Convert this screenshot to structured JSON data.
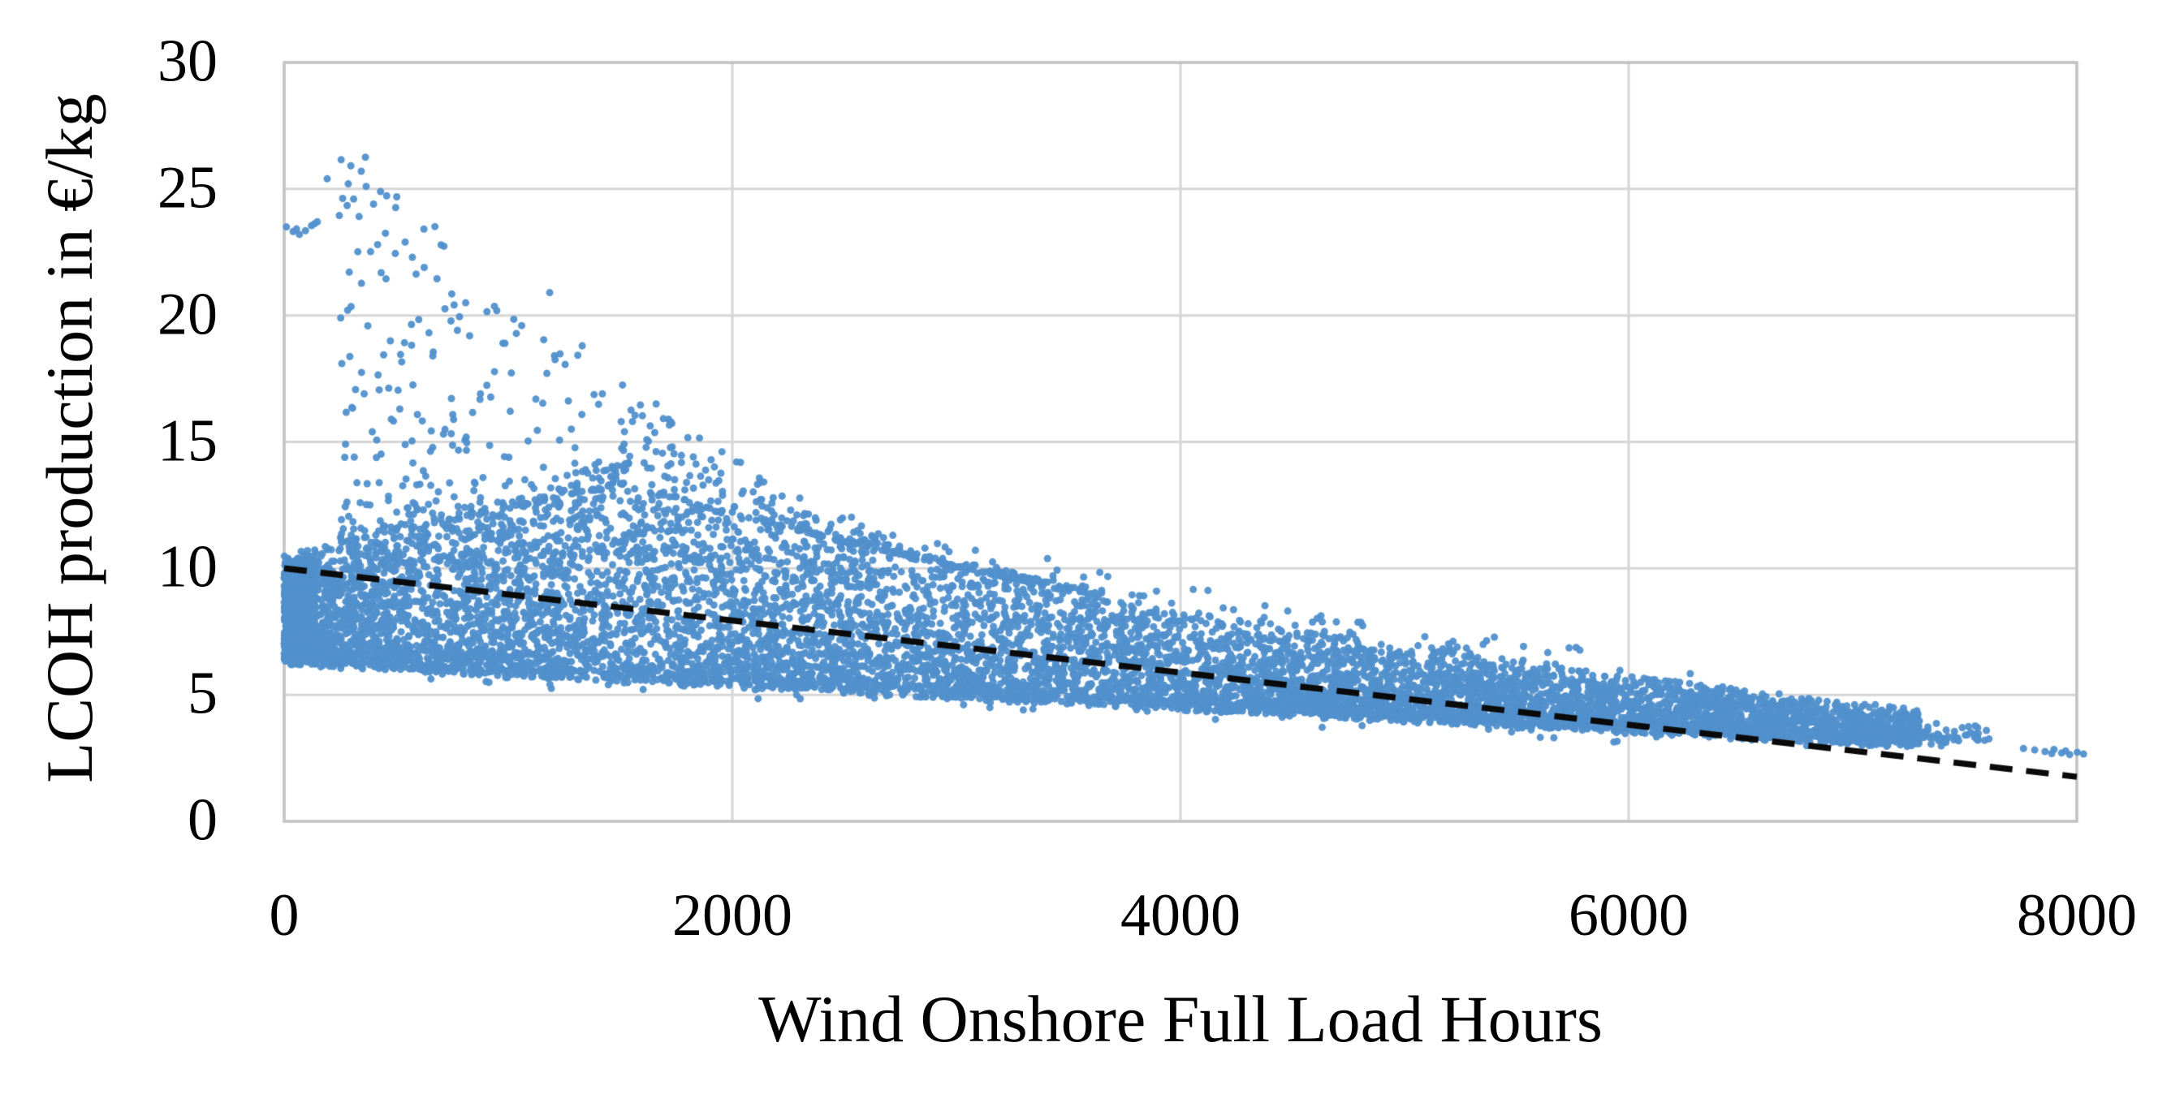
{
  "page": {
    "background": "#FFFFFF"
  },
  "chart_data": {
    "type": "scatter",
    "title": "",
    "xlabel": "Wind Onshore Full Load Hours",
    "ylabel": "LCOH production in €/kg",
    "xlim": [
      0,
      8000
    ],
    "ylim": [
      0,
      30
    ],
    "xticks": [
      0,
      2000,
      4000,
      6000,
      8000
    ],
    "yticks": [
      0,
      5,
      10,
      15,
      20,
      25,
      30
    ],
    "grid": true,
    "legend": false,
    "colors": {
      "marker": "#5190CC",
      "marker_dense": "#4C89C6",
      "grid": "#D6D6D6",
      "border": "#C4C4C4",
      "text": "#000000",
      "trend": "#0A0A0A"
    },
    "marker": {
      "radius_px": 4.5,
      "opacity": 0.95
    },
    "trendline": {
      "type": "linear-dashed",
      "x0": 0,
      "y0": 10.0,
      "x1": 8000,
      "y1": 1.76,
      "dash": [
        28,
        17
      ],
      "width": 7.5
    },
    "description": "Monte-Carlo style scatter of levelized cost of hydrogen production versus wind onshore full load hours; dense declining band from ~6-10.5 €/kg at low full load hours to ~2.7-3 €/kg near 8000 h, with a sparse fan of high-cost outliers up to ~25.7 €/kg below 3600 h and a dashed linear trendline from (0, 10) to (8000, 1.76)",
    "scatter_model": {
      "seed": 1337,
      "envelopes": {
        "lower": {
          "base": 6.35,
          "slope": 0.00045
        },
        "top": {
          "a": 17.56,
          "b": 0.0001905,
          "left_break": 1500,
          "left_base": 10.4,
          "left_slope": 0.0018667
        },
        "fan_top": {
          "a": 26.5,
          "b": 0.00037,
          "x0": 350,
          "cap": 26.5
        }
      },
      "components": {
        "core": {
          "n": 9200,
          "x_max": 7300,
          "x_pow": 1.18,
          "y_pow": 1.65,
          "edge_jitter": 0.2
        },
        "wall": {
          "n": 750,
          "x_max": 140,
          "y_min": 6.35,
          "y_max": 10.35
        },
        "fan": {
          "n": 560,
          "x_min": 250,
          "x_span": 3350,
          "x_pow": 1.35,
          "y_pow": 2.6,
          "y_lift": 0.15
        },
        "halo": {
          "n": 190,
          "x_min": 500,
          "x_span": 5800,
          "y_above": 1.15,
          "y_pow": 2.4
        },
        "tail": {
          "n": 60,
          "x_min": 7150,
          "x_span": 480,
          "x_pow": 1.2,
          "y_lift": 0.1,
          "y_span": 0.75,
          "y_pow": 1.6
        },
        "below": {
          "n": 70,
          "x_min": 600,
          "x_span": 6200,
          "y_drop": 0.08,
          "y_depth": 0.5,
          "y_pow": 2.0
        }
      },
      "outlier_points": [
        [
          10,
          23.5
        ],
        [
          40,
          23.32
        ],
        [
          68,
          23.2
        ],
        [
          95,
          23.35
        ],
        [
          122,
          23.55
        ],
        [
          148,
          23.7
        ],
        [
          55,
          23.42
        ],
        [
          135,
          23.62
        ],
        [
          192,
          25.4
        ],
        [
          286,
          25.2
        ],
        [
          344,
          25.7
        ],
        [
          366,
          25.1
        ],
        [
          399,
          24.4
        ],
        [
          246,
          23.95
        ],
        [
          430,
          24.9
        ],
        [
          310,
          24.6
        ],
        [
          417,
          22.8
        ],
        [
          452,
          23.25
        ],
        [
          496,
          22.45
        ],
        [
          540,
          22.9
        ],
        [
          572,
          22.3
        ],
        [
          625,
          21.9
        ],
        [
          682,
          21.45
        ],
        [
          748,
          20.85
        ],
        [
          810,
          20.5
        ],
        [
          905,
          20.15
        ],
        [
          985,
          18.9
        ],
        [
          1060,
          19.6
        ],
        [
          1185,
          20.9
        ],
        [
          1330,
          18.8
        ],
        [
          1420,
          16.9
        ],
        [
          1510,
          17.25
        ],
        [
          1660,
          16.5
        ],
        [
          6810,
          4.35
        ],
        [
          6890,
          4.05
        ],
        [
          6965,
          3.9
        ],
        [
          7045,
          4.2
        ],
        [
          7125,
          3.95
        ],
        [
          7330,
          3.55
        ],
        [
          7378,
          3.45
        ],
        [
          7425,
          3.35
        ],
        [
          7468,
          3.3
        ],
        [
          7512,
          3.42
        ],
        [
          7558,
          3.3
        ],
        [
          7608,
          3.26
        ],
        [
          7350,
          3.05
        ],
        [
          7395,
          2.98
        ],
        [
          7762,
          2.88
        ],
        [
          7812,
          2.82
        ],
        [
          7858,
          2.76
        ],
        [
          7898,
          2.84
        ],
        [
          7932,
          2.7
        ],
        [
          7968,
          2.64
        ],
        [
          8002,
          2.73
        ],
        [
          7888,
          2.68
        ],
        [
          7950,
          2.78
        ],
        [
          8030,
          2.66
        ]
      ]
    }
  }
}
